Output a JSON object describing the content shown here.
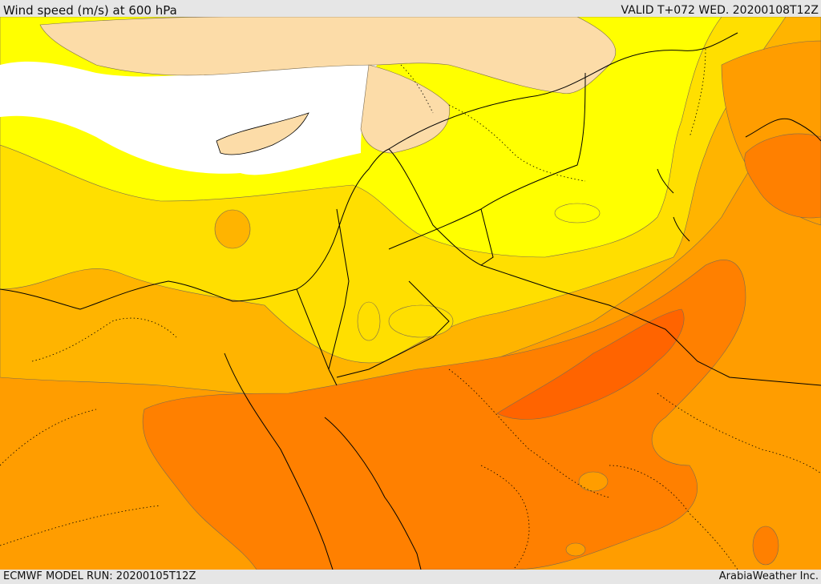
{
  "header": {
    "title": "Wind speed (m/s) at 600 hPa",
    "valid_time": "VALID T+072 WED. 20200108T12Z"
  },
  "footer": {
    "model_run": "ECMWF MODEL RUN: 20200105T12Z",
    "credit": "ArabiaWeather Inc."
  },
  "palette": {
    "sea": "#ffffff",
    "land_light": "#fcdca8",
    "band_1": "#ffff00",
    "band_2": "#ffdf00",
    "band_3": "#ffb400",
    "band_4": "#ff9d00",
    "band_5": "#ff8000",
    "band_6": "#ff6400",
    "contour": "#7a6a50",
    "border": "#000000"
  }
}
